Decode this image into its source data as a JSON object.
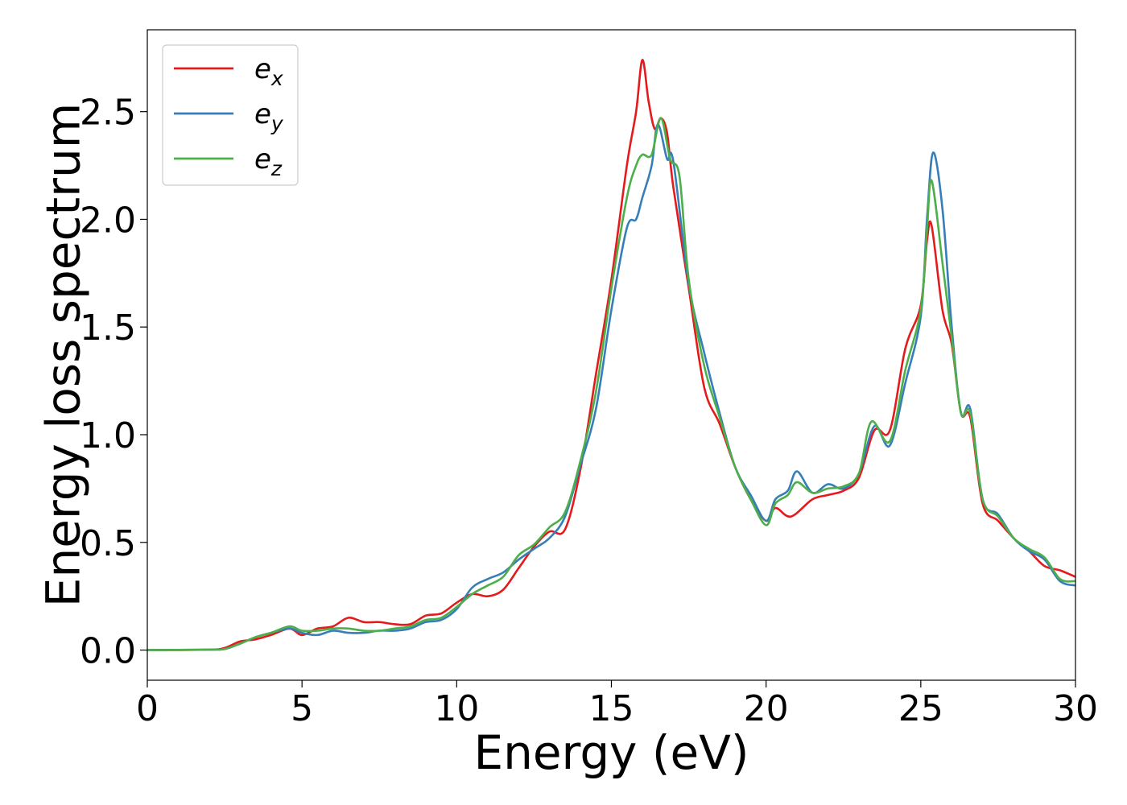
{
  "chart_data": {
    "type": "line",
    "title": "",
    "xlabel": "Energy (eV)",
    "ylabel": "Energy loss spectrum",
    "xlim": [
      0,
      30
    ],
    "ylim": [
      -0.14,
      2.88
    ],
    "xticks": [
      0,
      5,
      10,
      15,
      20,
      25,
      30
    ],
    "xtick_labels": [
      "0",
      "5",
      "10",
      "15",
      "20",
      "25",
      "30"
    ],
    "yticks": [
      0.0,
      0.5,
      1.0,
      1.5,
      2.0,
      2.5
    ],
    "ytick_labels": [
      "0.0",
      "0.5",
      "1.0",
      "1.5",
      "2.0",
      "2.5"
    ],
    "grid": false,
    "legend_position": "top-left",
    "series": [
      {
        "name": "e",
        "name_sub": "x",
        "color": "#e41a1c",
        "points": [
          [
            0,
            0
          ],
          [
            2,
            0.002
          ],
          [
            2.5,
            0.01
          ],
          [
            3,
            0.04
          ],
          [
            3.5,
            0.05
          ],
          [
            4,
            0.07
          ],
          [
            4.6,
            0.1
          ],
          [
            5,
            0.07
          ],
          [
            5.5,
            0.1
          ],
          [
            6,
            0.11
          ],
          [
            6.5,
            0.15
          ],
          [
            7,
            0.13
          ],
          [
            7.5,
            0.13
          ],
          [
            8,
            0.12
          ],
          [
            8.5,
            0.12
          ],
          [
            9,
            0.16
          ],
          [
            9.5,
            0.17
          ],
          [
            10,
            0.22
          ],
          [
            10.5,
            0.26
          ],
          [
            11,
            0.25
          ],
          [
            11.5,
            0.28
          ],
          [
            12,
            0.38
          ],
          [
            12.5,
            0.48
          ],
          [
            13,
            0.55
          ],
          [
            13.5,
            0.56
          ],
          [
            14,
            0.84
          ],
          [
            14.5,
            1.28
          ],
          [
            15,
            1.72
          ],
          [
            15.5,
            2.25
          ],
          [
            15.8,
            2.5
          ],
          [
            16,
            2.74
          ],
          [
            16.2,
            2.55
          ],
          [
            16.4,
            2.42
          ],
          [
            16.6,
            2.47
          ],
          [
            16.8,
            2.4
          ],
          [
            17,
            2.15
          ],
          [
            17.5,
            1.68
          ],
          [
            18,
            1.22
          ],
          [
            18.5,
            1.05
          ],
          [
            19,
            0.85
          ],
          [
            19.5,
            0.7
          ],
          [
            20,
            0.6
          ],
          [
            20.3,
            0.66
          ],
          [
            20.8,
            0.62
          ],
          [
            21.5,
            0.7
          ],
          [
            22,
            0.72
          ],
          [
            22.5,
            0.74
          ],
          [
            23,
            0.8
          ],
          [
            23.5,
            1.02
          ],
          [
            24,
            1.02
          ],
          [
            24.5,
            1.4
          ],
          [
            25,
            1.6
          ],
          [
            25.2,
            1.9
          ],
          [
            25.35,
            1.97
          ],
          [
            25.7,
            1.58
          ],
          [
            26,
            1.42
          ],
          [
            26.3,
            1.1
          ],
          [
            26.6,
            1.08
          ],
          [
            27,
            0.68
          ],
          [
            27.5,
            0.6
          ],
          [
            28,
            0.52
          ],
          [
            28.5,
            0.46
          ],
          [
            29,
            0.39
          ],
          [
            29.5,
            0.37
          ],
          [
            30,
            0.34
          ]
        ]
      },
      {
        "name": "e",
        "name_sub": "y",
        "color": "#377eb8",
        "points": [
          [
            0,
            0
          ],
          [
            2,
            0.002
          ],
          [
            2.5,
            0.005
          ],
          [
            3,
            0.03
          ],
          [
            3.5,
            0.06
          ],
          [
            4,
            0.08
          ],
          [
            4.6,
            0.1
          ],
          [
            5,
            0.08
          ],
          [
            5.5,
            0.07
          ],
          [
            6,
            0.09
          ],
          [
            6.5,
            0.08
          ],
          [
            7,
            0.08
          ],
          [
            7.5,
            0.09
          ],
          [
            8,
            0.09
          ],
          [
            8.5,
            0.1
          ],
          [
            9,
            0.13
          ],
          [
            9.5,
            0.14
          ],
          [
            10,
            0.19
          ],
          [
            10.5,
            0.29
          ],
          [
            11,
            0.33
          ],
          [
            11.5,
            0.36
          ],
          [
            12,
            0.42
          ],
          [
            12.5,
            0.47
          ],
          [
            13,
            0.52
          ],
          [
            13.5,
            0.62
          ],
          [
            14,
            0.86
          ],
          [
            14.5,
            1.12
          ],
          [
            15,
            1.58
          ],
          [
            15.5,
            1.96
          ],
          [
            15.8,
            2.0
          ],
          [
            16,
            2.1
          ],
          [
            16.3,
            2.25
          ],
          [
            16.5,
            2.44
          ],
          [
            16.8,
            2.28
          ],
          [
            17,
            2.27
          ],
          [
            17.5,
            1.7
          ],
          [
            18,
            1.38
          ],
          [
            18.5,
            1.1
          ],
          [
            19,
            0.85
          ],
          [
            19.5,
            0.72
          ],
          [
            20,
            0.6
          ],
          [
            20.3,
            0.7
          ],
          [
            20.7,
            0.74
          ],
          [
            21,
            0.83
          ],
          [
            21.5,
            0.73
          ],
          [
            22,
            0.77
          ],
          [
            22.5,
            0.75
          ],
          [
            23,
            0.82
          ],
          [
            23.5,
            1.04
          ],
          [
            24,
            0.95
          ],
          [
            24.5,
            1.24
          ],
          [
            25,
            1.55
          ],
          [
            25.2,
            2.0
          ],
          [
            25.4,
            2.31
          ],
          [
            25.7,
            2.05
          ],
          [
            26,
            1.5
          ],
          [
            26.3,
            1.1
          ],
          [
            26.6,
            1.12
          ],
          [
            27,
            0.7
          ],
          [
            27.5,
            0.63
          ],
          [
            28,
            0.52
          ],
          [
            28.5,
            0.46
          ],
          [
            29,
            0.42
          ],
          [
            29.5,
            0.32
          ],
          [
            30,
            0.3
          ]
        ]
      },
      {
        "name": "e",
        "name_sub": "z",
        "color": "#4daf4a",
        "points": [
          [
            0,
            0
          ],
          [
            2,
            0.002
          ],
          [
            2.5,
            0.005
          ],
          [
            3,
            0.03
          ],
          [
            3.5,
            0.06
          ],
          [
            4,
            0.08
          ],
          [
            4.6,
            0.11
          ],
          [
            5,
            0.09
          ],
          [
            5.5,
            0.09
          ],
          [
            6,
            0.1
          ],
          [
            6.5,
            0.1
          ],
          [
            7,
            0.09
          ],
          [
            7.5,
            0.09
          ],
          [
            8,
            0.1
          ],
          [
            8.5,
            0.11
          ],
          [
            9,
            0.14
          ],
          [
            9.5,
            0.15
          ],
          [
            10,
            0.2
          ],
          [
            10.5,
            0.26
          ],
          [
            11,
            0.3
          ],
          [
            11.5,
            0.34
          ],
          [
            12,
            0.44
          ],
          [
            12.5,
            0.49
          ],
          [
            13,
            0.57
          ],
          [
            13.5,
            0.64
          ],
          [
            14,
            0.88
          ],
          [
            14.5,
            1.2
          ],
          [
            15,
            1.68
          ],
          [
            15.5,
            2.1
          ],
          [
            15.8,
            2.25
          ],
          [
            16,
            2.3
          ],
          [
            16.3,
            2.3
          ],
          [
            16.6,
            2.47
          ],
          [
            16.9,
            2.28
          ],
          [
            17.2,
            2.2
          ],
          [
            17.5,
            1.72
          ],
          [
            18,
            1.32
          ],
          [
            18.5,
            1.08
          ],
          [
            19,
            0.85
          ],
          [
            19.5,
            0.7
          ],
          [
            20,
            0.58
          ],
          [
            20.3,
            0.68
          ],
          [
            20.7,
            0.72
          ],
          [
            21,
            0.78
          ],
          [
            21.5,
            0.73
          ],
          [
            22,
            0.75
          ],
          [
            22.5,
            0.76
          ],
          [
            23,
            0.82
          ],
          [
            23.4,
            1.06
          ],
          [
            24,
            0.97
          ],
          [
            24.5,
            1.3
          ],
          [
            25,
            1.58
          ],
          [
            25.2,
            1.95
          ],
          [
            25.35,
            2.18
          ],
          [
            25.7,
            1.8
          ],
          [
            26,
            1.45
          ],
          [
            26.3,
            1.1
          ],
          [
            26.6,
            1.1
          ],
          [
            27,
            0.7
          ],
          [
            27.5,
            0.62
          ],
          [
            28,
            0.52
          ],
          [
            28.5,
            0.47
          ],
          [
            29,
            0.43
          ],
          [
            29.5,
            0.33
          ],
          [
            30,
            0.32
          ]
        ]
      }
    ]
  }
}
